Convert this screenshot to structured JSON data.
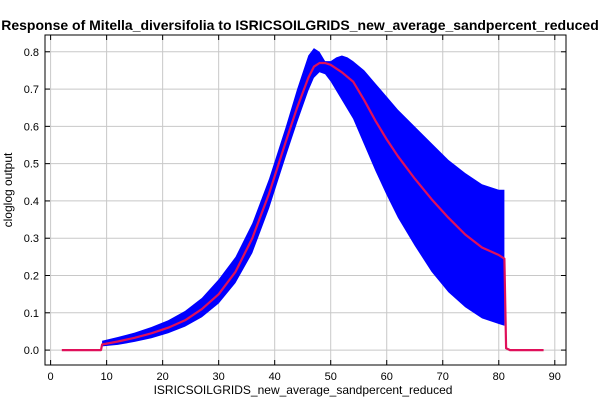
{
  "chart_data": {
    "type": "line",
    "title": "Response of Mitella_diversifolia to ISRICSOILGRIDS_new_average_sandpercent_reduced",
    "xlabel": "ISRICSOILGRIDS_new_average_sandpercent_reduced",
    "ylabel": "cloglog output",
    "xlim": [
      -1,
      92
    ],
    "ylim": [
      -0.04,
      0.845
    ],
    "xticks": [
      0,
      10,
      20,
      30,
      40,
      50,
      60,
      70,
      80,
      90
    ],
    "yticks": [
      0.0,
      0.1,
      0.2,
      0.3,
      0.4,
      0.5,
      0.6,
      0.7,
      0.8
    ],
    "grid": true,
    "series": [
      {
        "role": "mean",
        "color": "#e0105a",
        "x": [
          2,
          9,
          9.2,
          12,
          15,
          18,
          21,
          24,
          27,
          30,
          33,
          36,
          39,
          42,
          44,
          46,
          47,
          48,
          49,
          50,
          52,
          54,
          56,
          58,
          60,
          62,
          65,
          68,
          71,
          74,
          77,
          80,
          81,
          81.3,
          82,
          88
        ],
        "y": [
          0.0,
          0.0,
          0.015,
          0.023,
          0.033,
          0.045,
          0.06,
          0.08,
          0.11,
          0.15,
          0.21,
          0.3,
          0.42,
          0.56,
          0.65,
          0.73,
          0.76,
          0.77,
          0.77,
          0.765,
          0.745,
          0.72,
          0.67,
          0.615,
          0.565,
          0.52,
          0.46,
          0.405,
          0.355,
          0.31,
          0.275,
          0.255,
          0.245,
          0.005,
          0.0,
          0.0
        ]
      },
      {
        "role": "upper",
        "color": "#0000ff",
        "x": [
          9.2,
          12,
          15,
          18,
          21,
          24,
          27,
          30,
          33,
          36,
          39,
          42,
          44,
          46,
          47,
          48,
          49,
          50,
          51,
          52,
          53,
          54,
          56,
          58,
          60,
          62,
          65,
          68,
          71,
          74,
          77,
          80,
          81
        ],
        "y": [
          0.025,
          0.035,
          0.047,
          0.062,
          0.08,
          0.105,
          0.14,
          0.19,
          0.25,
          0.34,
          0.46,
          0.6,
          0.7,
          0.79,
          0.81,
          0.8,
          0.775,
          0.775,
          0.785,
          0.79,
          0.785,
          0.775,
          0.75,
          0.715,
          0.68,
          0.645,
          0.6,
          0.555,
          0.51,
          0.475,
          0.445,
          0.43,
          0.43
        ]
      },
      {
        "role": "lower",
        "color": "#0000ff",
        "x": [
          9.2,
          12,
          15,
          18,
          21,
          24,
          27,
          30,
          33,
          36,
          39,
          42,
          44,
          46,
          47,
          48,
          49,
          50,
          52,
          54,
          56,
          58,
          60,
          62,
          65,
          68,
          71,
          74,
          77,
          80,
          81
        ],
        "y": [
          0.01,
          0.014,
          0.022,
          0.032,
          0.045,
          0.063,
          0.088,
          0.125,
          0.18,
          0.26,
          0.38,
          0.52,
          0.61,
          0.695,
          0.73,
          0.745,
          0.74,
          0.72,
          0.67,
          0.62,
          0.55,
          0.48,
          0.415,
          0.355,
          0.28,
          0.21,
          0.155,
          0.115,
          0.085,
          0.07,
          0.065
        ]
      }
    ]
  }
}
